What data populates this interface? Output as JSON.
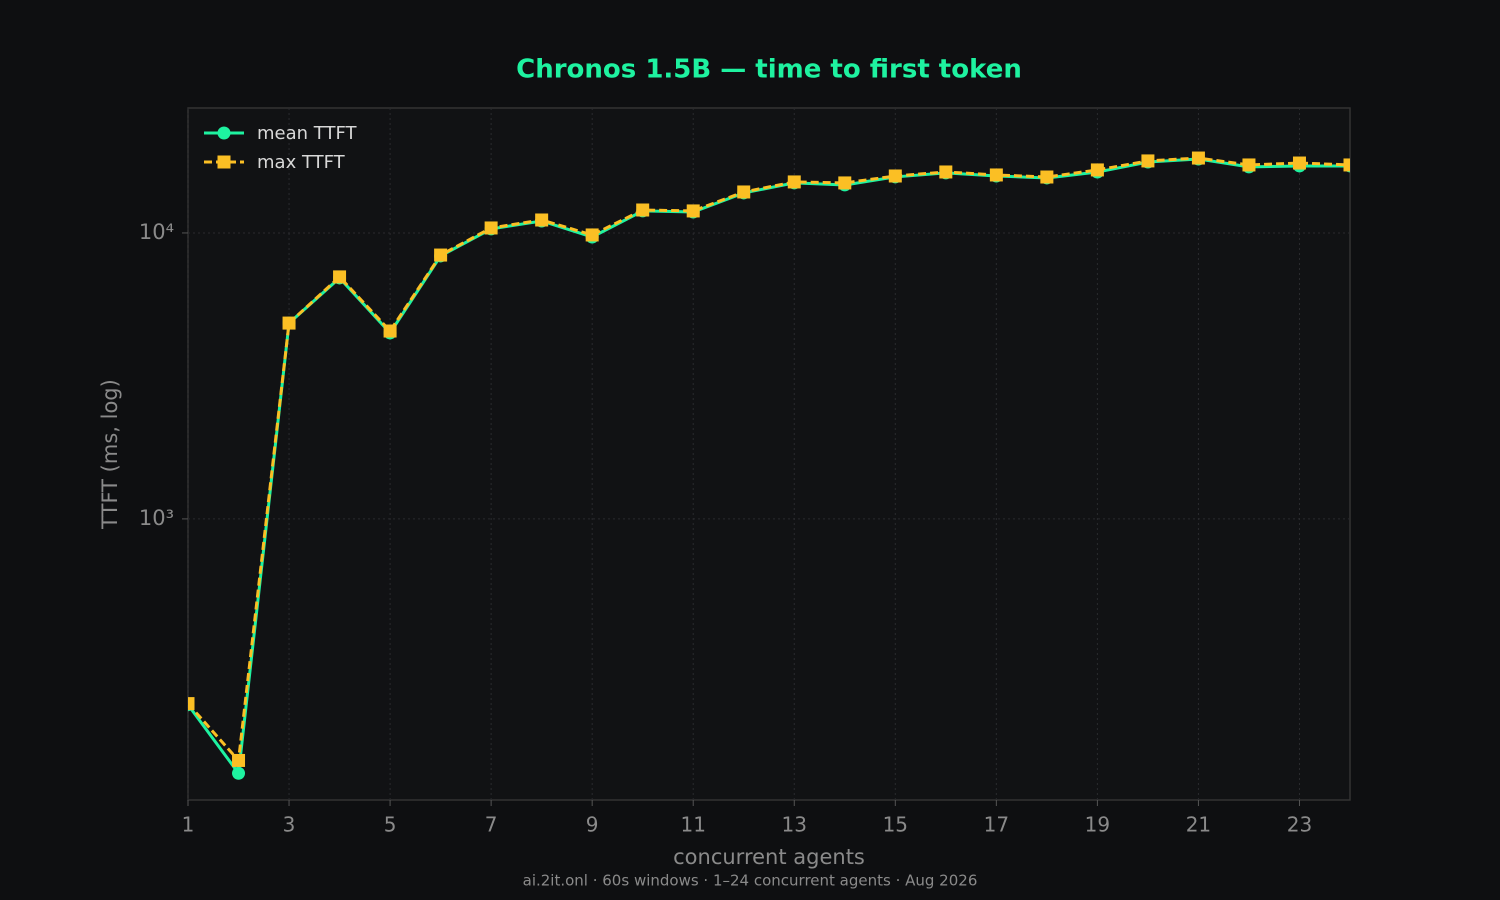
{
  "chart_data": {
    "type": "line",
    "title": "Chronos 1.5B — time to first token",
    "xlabel": "concurrent agents",
    "ylabel": "TTFT (ms, log)",
    "caption": "ai.2it.onl · 60s windows · 1–24 concurrent agents · Aug 2026",
    "x": [
      1,
      2,
      3,
      4,
      5,
      6,
      7,
      8,
      9,
      10,
      11,
      12,
      13,
      14,
      15,
      16,
      17,
      18,
      19,
      20,
      21,
      22,
      23,
      24
    ],
    "series": [
      {
        "name": "mean TTFT",
        "color": "#1ef2a0",
        "marker": "circle",
        "linestyle": "solid",
        "values": [
          224,
          129,
          4840,
          6960,
          4470,
          8310,
          10330,
          11010,
          9680,
          11940,
          11840,
          13800,
          14960,
          14720,
          15700,
          16220,
          15820,
          15570,
          16330,
          17700,
          18140,
          17020,
          17150,
          17150
        ]
      },
      {
        "name": "max TTFT",
        "color": "#fbbf24",
        "marker": "square",
        "linestyle": "dashed",
        "values": [
          226,
          143,
          4840,
          7020,
          4540,
          8370,
          10410,
          11100,
          9840,
          12030,
          11940,
          13910,
          15080,
          14960,
          15820,
          16340,
          15950,
          15690,
          16610,
          17860,
          18280,
          17290,
          17560,
          17290
        ]
      }
    ],
    "xlim": [
      1,
      24
    ],
    "xticks": [
      1,
      3,
      5,
      7,
      9,
      11,
      13,
      15,
      17,
      19,
      21,
      23
    ],
    "ylim": [
      104,
      27350
    ],
    "yscale": "log",
    "yticks": [
      {
        "value": 1000,
        "label": "10³"
      },
      {
        "value": 10000,
        "label": "10⁴"
      }
    ],
    "grid": true,
    "legend": "upper-left"
  }
}
